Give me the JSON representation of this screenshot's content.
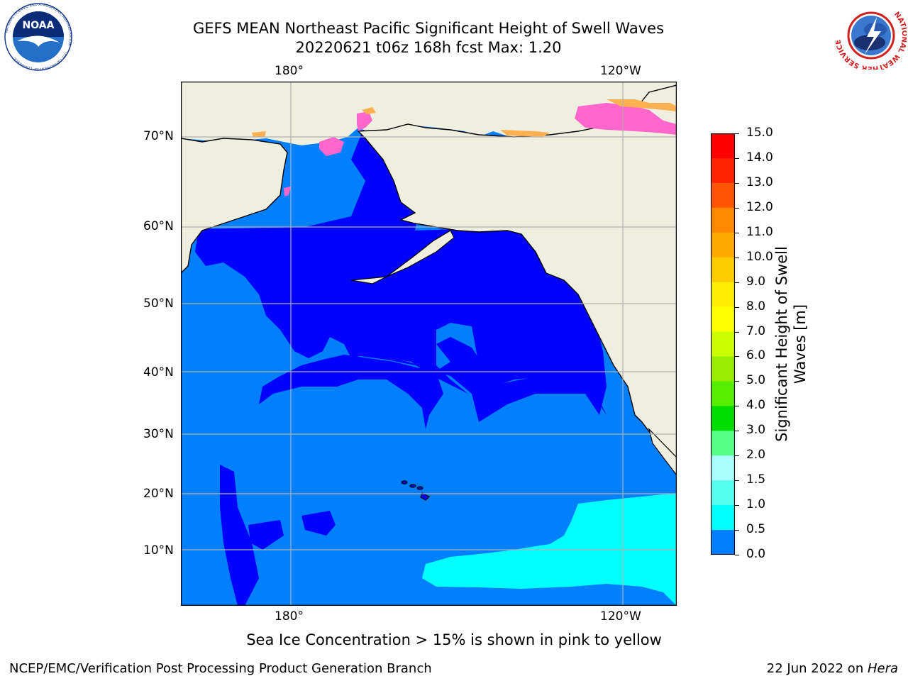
{
  "header": {
    "title_line1": "GEFS MEAN Northeast Pacific Significant Height of Swell Waves",
    "title_line2": "20220621 t06z 168h fcst   Max: 1.20"
  },
  "logos": {
    "left_org": "NATIONAL OCEANIC AND ATMOSPHERIC ADMINISTRATION",
    "left_abbrev": "NOAA",
    "left_dept": "U.S. DEPARTMENT OF COMMERCE",
    "right_org": "NATIONAL WEATHER SERVICE"
  },
  "map": {
    "lon_ticks": [
      "180°",
      "120°W"
    ],
    "lat_ticks": [
      "70°N",
      "60°N",
      "50°N",
      "40°N",
      "30°N",
      "20°N",
      "10°N"
    ],
    "colors": {
      "land": "#efefdf",
      "grid": "#b0b0b0",
      "band_0_0p5": "#0000ff",
      "band_0p5_1": "#0080ff",
      "band_1_1p5": "#00ffff",
      "ice_pink": "#ff66cc",
      "ice_orange": "#ffb050"
    }
  },
  "colorbar": {
    "title": "Significant Height of Swell Waves [m]",
    "ticks": [
      "15.0",
      "14.0",
      "13.0",
      "12.0",
      "11.0",
      "10.0",
      "9.0",
      "8.0",
      "7.0",
      "6.0",
      "5.0",
      "4.0",
      "3.0",
      "2.0",
      "1.5",
      "1.0",
      "0.5",
      "0.0"
    ],
    "colors_top_to_bottom": [
      "#ff0000",
      "#ff2200",
      "#ff5500",
      "#ff8800",
      "#ffaa00",
      "#ffcc00",
      "#ffee00",
      "#ffff00",
      "#ccff00",
      "#99ee00",
      "#55ee00",
      "#00dd00",
      "#55ff88",
      "#aaffff",
      "#55ffee",
      "#00ffff",
      "#0080ff",
      "#0000ff"
    ]
  },
  "notes": {
    "sea_ice": "Sea Ice Concentration > 15% is shown in pink to yellow"
  },
  "footer": {
    "left": "NCEP/EMC/Verification Post Processing Product Generation Branch",
    "date": "22 Jun 2022 on ",
    "machine": "Hera"
  }
}
